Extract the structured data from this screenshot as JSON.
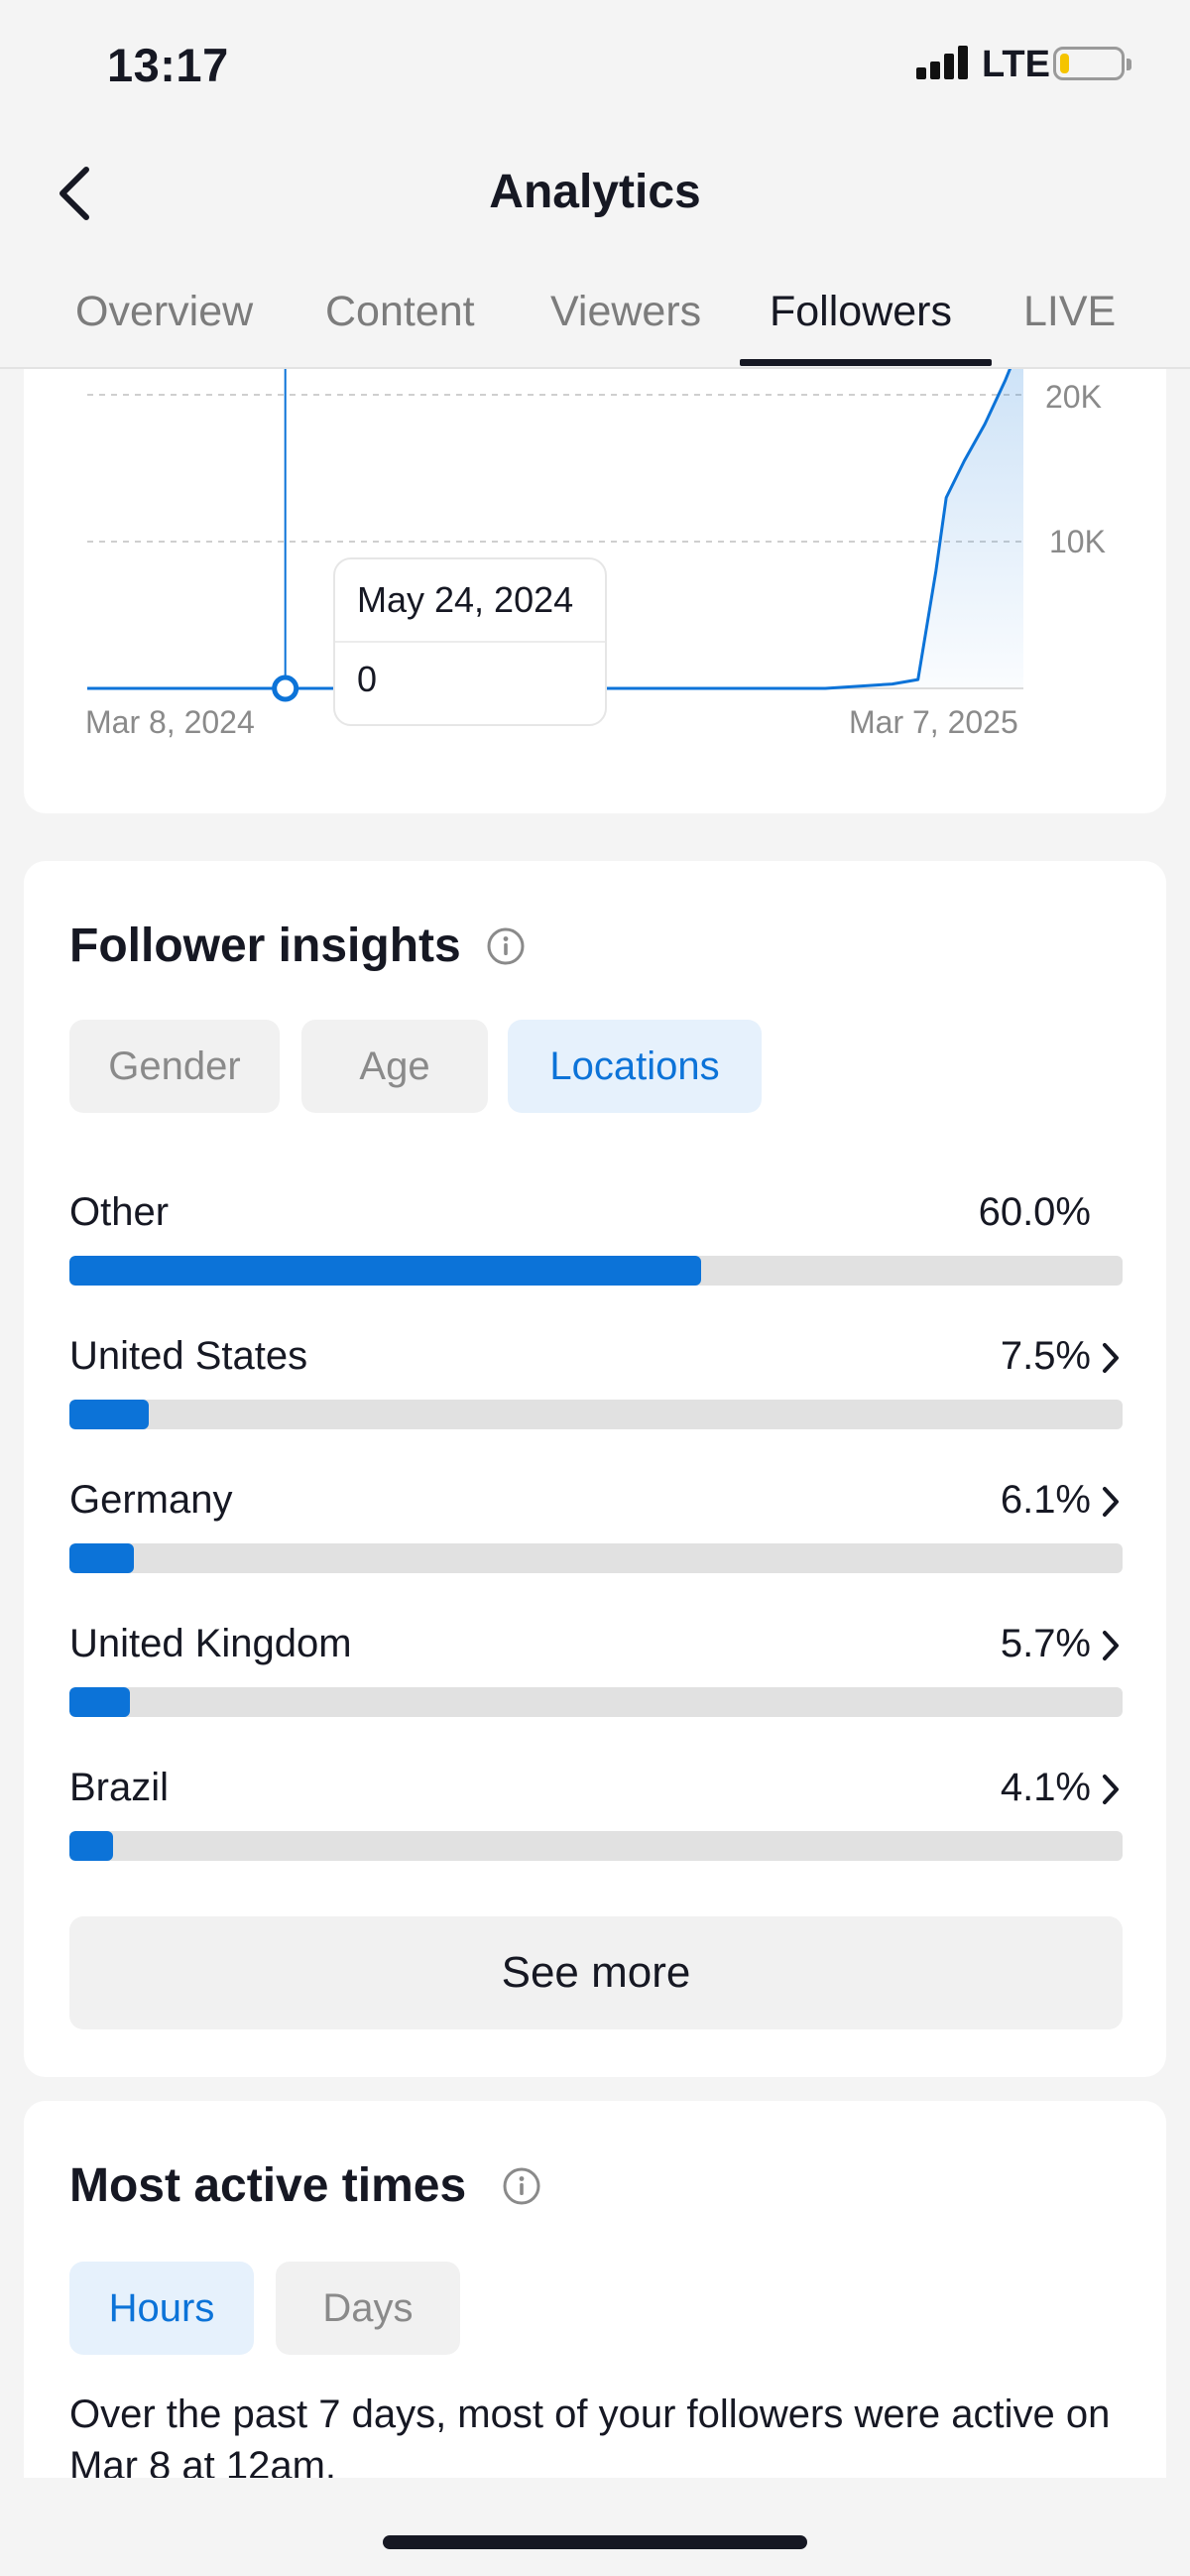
{
  "status_bar": {
    "time": "13:17",
    "network": "LTE",
    "battery_level": 0.15,
    "battery_color": "#f5c400"
  },
  "header": {
    "title": "Analytics",
    "back_icon": "chevron-left-icon"
  },
  "tabs": [
    {
      "label": "Overview",
      "active": false
    },
    {
      "label": "Content",
      "active": false
    },
    {
      "label": "Viewers",
      "active": false
    },
    {
      "label": "Followers",
      "active": true
    },
    {
      "label": "LIVE",
      "active": false
    }
  ],
  "chart_data": {
    "type": "area",
    "x_start_label": "Mar 8, 2024",
    "x_end_label": "Mar 7, 2025",
    "y_ticks": [
      "10K",
      "20K"
    ],
    "x": [
      "2024-03-08",
      "2024-05-24",
      "2024-12-20",
      "2025-01-15",
      "2025-01-25",
      "2025-02-01",
      "2025-02-05",
      "2025-02-12",
      "2025-02-20",
      "2025-02-28",
      "2025-03-07"
    ],
    "y": [
      0,
      0,
      0,
      300,
      600,
      8000,
      13000,
      15500,
      18000,
      21000,
      24000
    ],
    "ylim": [
      0,
      22000
    ],
    "grid": true,
    "accent_color": "#0c73d8",
    "tooltip": {
      "date": "May 24, 2024",
      "value": "0"
    }
  },
  "follower_insights": {
    "title": "Follower insights",
    "filters": [
      {
        "label": "Gender",
        "active": false
      },
      {
        "label": "Age",
        "active": false
      },
      {
        "label": "Locations",
        "active": true
      }
    ],
    "locations": [
      {
        "name": "Other",
        "percent_label": "60.0%",
        "value": 60.0,
        "has_chevron": false
      },
      {
        "name": "United States",
        "percent_label": "7.5%",
        "value": 7.5,
        "has_chevron": true
      },
      {
        "name": "Germany",
        "percent_label": "6.1%",
        "value": 6.1,
        "has_chevron": true
      },
      {
        "name": "United Kingdom",
        "percent_label": "5.7%",
        "value": 5.7,
        "has_chevron": true
      },
      {
        "name": "Brazil",
        "percent_label": "4.1%",
        "value": 4.1,
        "has_chevron": true
      }
    ],
    "see_more_label": "See more"
  },
  "most_active_times": {
    "title": "Most active times",
    "filters": [
      {
        "label": "Hours",
        "active": true
      },
      {
        "label": "Days",
        "active": false
      }
    ],
    "description": "Over the past 7 days, most of your followers were active on Mar 8 at 12am."
  }
}
